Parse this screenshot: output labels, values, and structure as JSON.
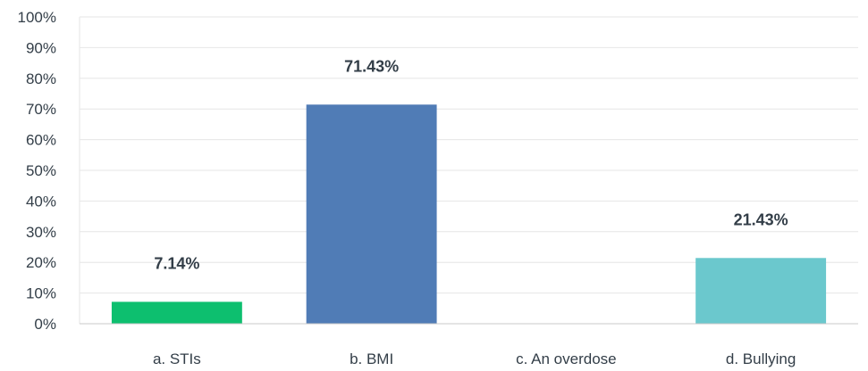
{
  "chart_data": {
    "type": "bar",
    "categories": [
      "a. STIs",
      "b. BMI",
      "c. An overdose",
      "d. Bullying"
    ],
    "values": [
      7.14,
      71.43,
      0,
      21.43
    ],
    "data_labels": [
      "7.14%",
      "71.43%",
      "",
      "21.43%"
    ],
    "colors": [
      "#0dbf6f",
      "#507cb6",
      "#6bc8cd",
      "#6bc8cd"
    ],
    "ylim": [
      0,
      100
    ],
    "y_ticks": [
      "0%",
      "10%",
      "20%",
      "30%",
      "40%",
      "50%",
      "60%",
      "70%",
      "80%",
      "90%",
      "100%"
    ],
    "grid": true,
    "title": "",
    "xlabel": "",
    "ylabel": ""
  }
}
